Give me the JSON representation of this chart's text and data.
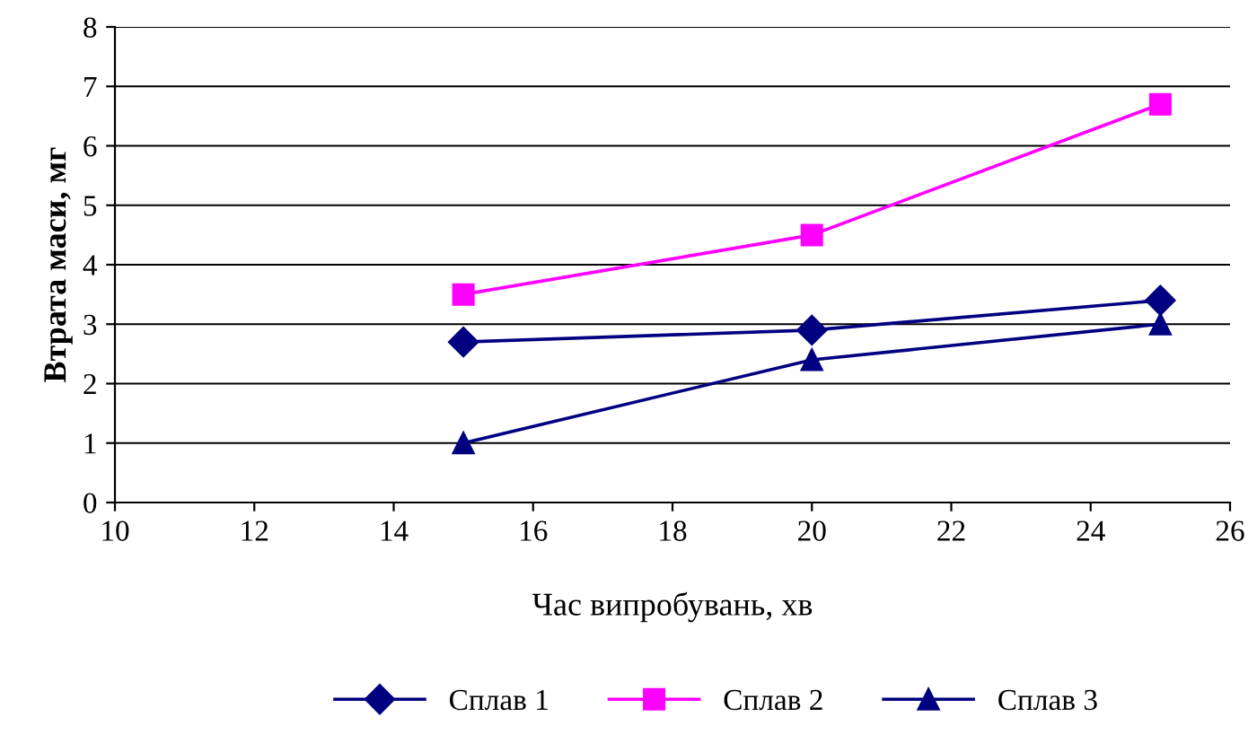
{
  "chart_data": {
    "type": "line",
    "xlabel": "Час випробувань, хв",
    "ylabel": "Втрата маси, мг",
    "x": [
      15,
      20,
      25
    ],
    "series": [
      {
        "name": "Сплав 1",
        "color": "#000080",
        "marker": "diamond",
        "values": [
          2.7,
          2.9,
          3.4
        ]
      },
      {
        "name": "Сплав 2",
        "color": "#ff00ff",
        "marker": "square",
        "values": [
          3.5,
          4.5,
          6.7
        ]
      },
      {
        "name": "Сплав 3",
        "color": "#000080",
        "marker": "triangle",
        "values": [
          1.0,
          2.4,
          3.0
        ]
      }
    ],
    "xlim": [
      10,
      26
    ],
    "xticks": [
      10,
      12,
      14,
      16,
      18,
      20,
      22,
      24,
      26
    ],
    "ylim": [
      0,
      8
    ],
    "yticks": [
      0,
      1,
      2,
      3,
      4,
      5,
      6,
      7,
      8
    ],
    "grid": "y",
    "legend": "bottom",
    "line_style": "solid"
  }
}
